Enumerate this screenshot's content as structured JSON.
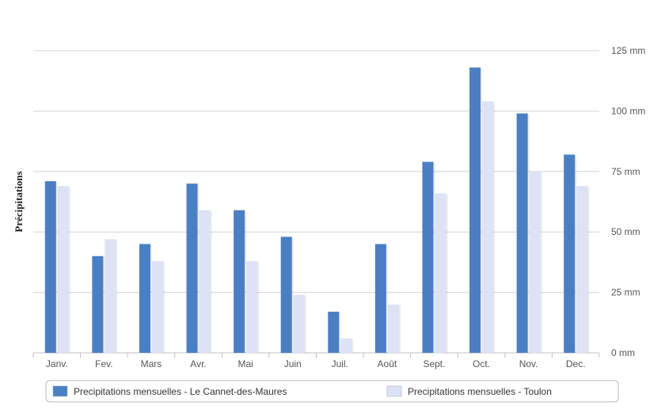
{
  "chart_data": {
    "type": "bar",
    "title": "",
    "xlabel": "",
    "ylabel": "Précipitations",
    "y_axis_position": "right",
    "ylim": [
      0,
      125
    ],
    "yticks": [
      0,
      25,
      50,
      75,
      100,
      125
    ],
    "ytick_labels": [
      "0 mm",
      "25 mm",
      "50 mm",
      "75 mm",
      "100 mm",
      "125 mm"
    ],
    "grid": true,
    "legend_position": "bottom",
    "categories": [
      "Janv.",
      "Fev.",
      "Mars",
      "Avr.",
      "Mai",
      "Juin",
      "Juil.",
      "Août",
      "Sept.",
      "Oct.",
      "Nov.",
      "Dec."
    ],
    "series": [
      {
        "name": "Precipitations mensuelles - Le Cannet-des-Maures",
        "color": "#4a7fc4",
        "values": [
          71,
          40,
          45,
          70,
          59,
          48,
          17,
          45,
          79,
          118,
          99,
          82
        ]
      },
      {
        "name": "Precipitations mensuelles - Toulon",
        "color": "#dde2f5",
        "values": [
          69,
          47,
          38,
          59,
          38,
          24,
          6,
          20,
          66,
          104,
          75,
          69
        ]
      }
    ]
  }
}
